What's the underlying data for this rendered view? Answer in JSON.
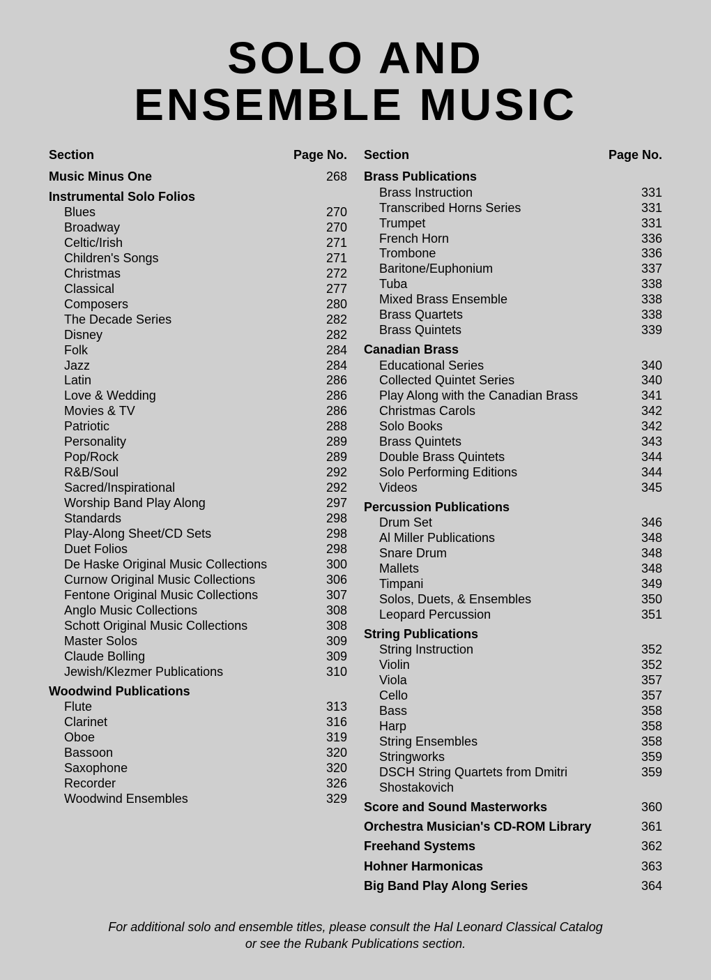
{
  "title_line1": "SOLO AND",
  "title_line2": "ENSEMBLE MUSIC",
  "header_section": "Section",
  "header_page": "Page No.",
  "footnote_line1": "For additional solo and ensemble titles, please consult the Hal Leonard Classical Catalog",
  "footnote_line2": "or see the Rubank Publications section.",
  "left": [
    {
      "type": "section",
      "label": "Music Minus One",
      "page": "268"
    },
    {
      "type": "section",
      "label": "Instrumental Solo Folios",
      "page": ""
    },
    {
      "type": "item",
      "label": "Blues",
      "page": "270"
    },
    {
      "type": "item",
      "label": "Broadway",
      "page": "270"
    },
    {
      "type": "item",
      "label": "Celtic/Irish",
      "page": "271"
    },
    {
      "type": "item",
      "label": "Children's Songs",
      "page": "271"
    },
    {
      "type": "item",
      "label": "Christmas",
      "page": "272"
    },
    {
      "type": "item",
      "label": "Classical",
      "page": "277"
    },
    {
      "type": "item",
      "label": "Composers",
      "page": "280"
    },
    {
      "type": "item",
      "label": "The Decade Series",
      "page": "282"
    },
    {
      "type": "item",
      "label": "Disney",
      "page": "282"
    },
    {
      "type": "item",
      "label": "Folk",
      "page": "284"
    },
    {
      "type": "item",
      "label": "Jazz",
      "page": "284"
    },
    {
      "type": "item",
      "label": "Latin",
      "page": "286"
    },
    {
      "type": "item",
      "label": "Love & Wedding",
      "page": "286"
    },
    {
      "type": "item",
      "label": "Movies & TV",
      "page": "286"
    },
    {
      "type": "item",
      "label": "Patriotic",
      "page": "288"
    },
    {
      "type": "item",
      "label": "Personality",
      "page": "289"
    },
    {
      "type": "item",
      "label": "Pop/Rock",
      "page": "289"
    },
    {
      "type": "item",
      "label": "R&B/Soul",
      "page": "292"
    },
    {
      "type": "item",
      "label": "Sacred/Inspirational",
      "page": "292"
    },
    {
      "type": "item",
      "label": "Worship Band Play Along",
      "page": "297"
    },
    {
      "type": "item",
      "label": "Standards",
      "page": "298"
    },
    {
      "type": "item",
      "label": "Play-Along Sheet/CD Sets",
      "page": "298"
    },
    {
      "type": "item",
      "label": "Duet Folios",
      "page": "298"
    },
    {
      "type": "item",
      "label": "De Haske Original Music Collections",
      "page": "300"
    },
    {
      "type": "item",
      "label": "Curnow Original Music Collections",
      "page": "306"
    },
    {
      "type": "item",
      "label": "Fentone Original Music Collections",
      "page": "307"
    },
    {
      "type": "item",
      "label": "Anglo Music Collections",
      "page": "308"
    },
    {
      "type": "item",
      "label": "Schott Original Music Collections",
      "page": "308"
    },
    {
      "type": "item",
      "label": "Master Solos",
      "page": "309"
    },
    {
      "type": "item",
      "label": "Claude Bolling",
      "page": "309"
    },
    {
      "type": "item",
      "label": "Jewish/Klezmer Publications",
      "page": "310"
    },
    {
      "type": "section",
      "label": "Woodwind Publications",
      "page": ""
    },
    {
      "type": "item",
      "label": "Flute",
      "page": "313"
    },
    {
      "type": "item",
      "label": "Clarinet",
      "page": "316"
    },
    {
      "type": "item",
      "label": "Oboe",
      "page": "319"
    },
    {
      "type": "item",
      "label": "Bassoon",
      "page": "320"
    },
    {
      "type": "item",
      "label": "Saxophone",
      "page": "320"
    },
    {
      "type": "item",
      "label": "Recorder",
      "page": "326"
    },
    {
      "type": "item",
      "label": "Woodwind Ensembles",
      "page": "329"
    }
  ],
  "right": [
    {
      "type": "section",
      "label": "Brass Publications",
      "page": ""
    },
    {
      "type": "item",
      "label": "Brass Instruction",
      "page": "331"
    },
    {
      "type": "item",
      "label": "Transcribed Horns Series",
      "page": "331"
    },
    {
      "type": "item",
      "label": "Trumpet",
      "page": "331"
    },
    {
      "type": "item",
      "label": "French Horn",
      "page": "336"
    },
    {
      "type": "item",
      "label": "Trombone",
      "page": "336"
    },
    {
      "type": "item",
      "label": "Baritone/Euphonium",
      "page": "337"
    },
    {
      "type": "item",
      "label": "Tuba",
      "page": "338"
    },
    {
      "type": "item",
      "label": "Mixed Brass Ensemble",
      "page": "338"
    },
    {
      "type": "item",
      "label": "Brass Quartets",
      "page": "338"
    },
    {
      "type": "item",
      "label": "Brass Quintets",
      "page": "339"
    },
    {
      "type": "section",
      "label": "Canadian Brass",
      "page": ""
    },
    {
      "type": "item",
      "label": "Educational Series",
      "page": "340"
    },
    {
      "type": "item",
      "label": "Collected Quintet Series",
      "page": "340"
    },
    {
      "type": "item",
      "label": "Play Along with the Canadian Brass",
      "page": "341"
    },
    {
      "type": "item",
      "label": "Christmas Carols",
      "page": "342"
    },
    {
      "type": "item",
      "label": "Solo Books",
      "page": "342"
    },
    {
      "type": "item",
      "label": "Brass Quintets",
      "page": "343"
    },
    {
      "type": "item",
      "label": "Double Brass Quintets",
      "page": "344"
    },
    {
      "type": "item",
      "label": "Solo Performing Editions",
      "page": "344"
    },
    {
      "type": "item",
      "label": "Videos",
      "page": "345"
    },
    {
      "type": "section",
      "label": "Percussion Publications",
      "page": ""
    },
    {
      "type": "item",
      "label": "Drum Set",
      "page": "346"
    },
    {
      "type": "item",
      "label": "Al Miller Publications",
      "page": "348"
    },
    {
      "type": "item",
      "label": "Snare Drum",
      "page": "348"
    },
    {
      "type": "item",
      "label": "Mallets",
      "page": "348"
    },
    {
      "type": "item",
      "label": "Timpani",
      "page": "349"
    },
    {
      "type": "item",
      "label": "Solos, Duets, & Ensembles",
      "page": "350"
    },
    {
      "type": "item",
      "label": "Leopard Percussion",
      "page": "351"
    },
    {
      "type": "section",
      "label": "String Publications",
      "page": ""
    },
    {
      "type": "item",
      "label": "String Instruction",
      "page": "352"
    },
    {
      "type": "item",
      "label": "Violin",
      "page": "352"
    },
    {
      "type": "item",
      "label": "Viola",
      "page": "357"
    },
    {
      "type": "item",
      "label": "Cello",
      "page": "357"
    },
    {
      "type": "item",
      "label": "Bass",
      "page": "358"
    },
    {
      "type": "item",
      "label": "Harp",
      "page": "358"
    },
    {
      "type": "item",
      "label": "String Ensembles",
      "page": "358"
    },
    {
      "type": "item",
      "label": "Stringworks",
      "page": "359"
    },
    {
      "type": "item",
      "label": "DSCH String Quartets from Dmitri Shostakovich",
      "page": "359"
    },
    {
      "type": "section",
      "label": "Score and Sound Masterworks",
      "page": "360"
    },
    {
      "type": "section",
      "label": "Orchestra Musician's CD-ROM Library",
      "page": "361"
    },
    {
      "type": "section",
      "label": "Freehand Systems",
      "page": "362"
    },
    {
      "type": "section",
      "label": "Hohner Harmonicas",
      "page": "363"
    },
    {
      "type": "section",
      "label": "Big Band Play Along Series",
      "page": "364"
    }
  ]
}
